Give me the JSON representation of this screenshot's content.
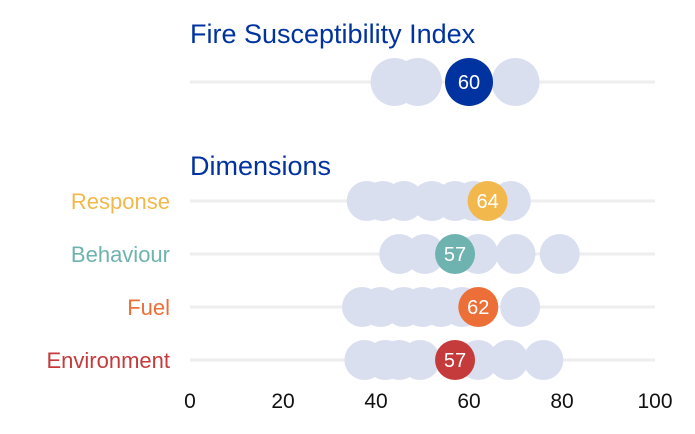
{
  "chart_data": {
    "type": "scatter",
    "subtype": "dot-strip",
    "xlim": [
      0,
      100
    ],
    "xticks": [
      "0",
      "20",
      "40",
      "60",
      "80",
      "100"
    ],
    "background_color": "#dadff0",
    "gridline_color": "#eeeeee",
    "overall": {
      "title": "Fire Susceptibility Index",
      "value": 60,
      "value_label": "60",
      "color": "#0033a0",
      "others": [
        44,
        49,
        70
      ]
    },
    "section_title": "Dimensions",
    "dimensions": [
      {
        "name": "Response",
        "value": 64,
        "value_label": "64",
        "color": "#f2b84b",
        "others": [
          38,
          41.5,
          46,
          52,
          57,
          61,
          69
        ]
      },
      {
        "name": "Behaviour",
        "value": 57,
        "value_label": "57",
        "color": "#6fb3b0",
        "others": [
          45,
          50.5,
          62,
          70,
          79.5
        ]
      },
      {
        "name": "Fuel",
        "value": 62,
        "value_label": "62",
        "color": "#ec6f38",
        "others": [
          37,
          41,
          46,
          50,
          54,
          58.5,
          71
        ]
      },
      {
        "name": "Environment",
        "value": 57,
        "value_label": "57",
        "color": "#c53b3b",
        "others": [
          37.5,
          42,
          45,
          49.5,
          62,
          68.5,
          76
        ]
      }
    ]
  }
}
